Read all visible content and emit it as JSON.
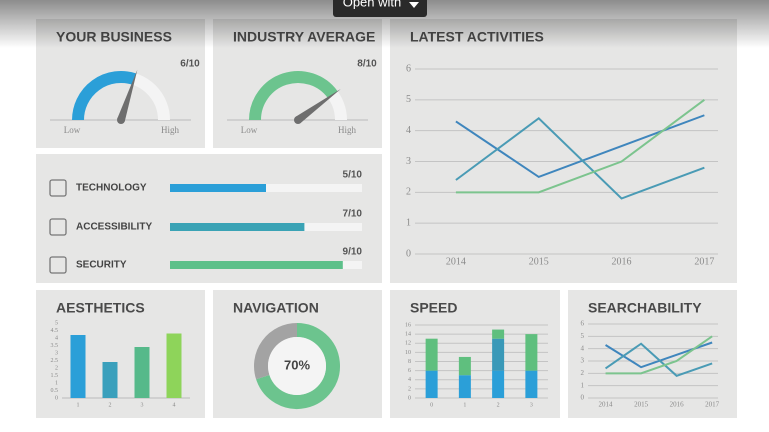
{
  "button": {
    "label": "Open with"
  },
  "chart_data": [
    {
      "type": "gauge",
      "title": "YOUR BUSINESS",
      "values": [
        6
      ],
      "value_labels": [
        "6/10"
      ],
      "ylim": [
        0,
        10
      ],
      "min_label": "Low",
      "max_label": "High",
      "color": "#2b9fd8"
    },
    {
      "type": "gauge",
      "title": "INDUSTRY AVERAGE",
      "values": [
        8
      ],
      "value_labels": [
        "8/10"
      ],
      "ylim": [
        0,
        10
      ],
      "min_label": "Low",
      "max_label": "High",
      "color": "#6cc48e"
    },
    {
      "type": "line",
      "title": "LATEST ACTIVITIES",
      "categories": [
        "2014",
        "2015",
        "2016",
        "2017"
      ],
      "series": [
        {
          "color": "#3f86bd",
          "values": [
            4.3,
            2.5,
            3.5,
            4.5
          ]
        },
        {
          "color": "#4a9bb5",
          "values": [
            2.4,
            4.4,
            1.8,
            2.8
          ]
        },
        {
          "color": "#7cc48e",
          "values": [
            2.0,
            2.0,
            3.0,
            5.0
          ]
        }
      ],
      "ylim": [
        0,
        6
      ],
      "yticks": [
        0,
        1,
        2,
        3,
        4,
        5,
        6
      ],
      "grid": true
    },
    {
      "type": "progress",
      "categories": [
        "TECHNOLOGY",
        "ACCESSIBILITY",
        "SECURITY"
      ],
      "values": [
        5,
        7,
        9
      ],
      "value_labels": [
        "5/10",
        "7/10",
        "9/10"
      ],
      "xlim": [
        0,
        10
      ],
      "colors": [
        "#2b9fd8",
        "#3aa3b5",
        "#5dc08a"
      ]
    },
    {
      "type": "bar",
      "title": "AESTHETICS",
      "categories": [
        "1",
        "2",
        "3",
        "4"
      ],
      "values": [
        4.2,
        2.4,
        3.4,
        4.3
      ],
      "colors": [
        "#2b9fd8",
        "#3aa0bc",
        "#56b98a",
        "#8ed45a"
      ],
      "ylim": [
        0,
        5
      ],
      "yticks": [
        0,
        0.5,
        1,
        1.5,
        2,
        2.5,
        3,
        3.5,
        4,
        4.5,
        5
      ]
    },
    {
      "type": "donut",
      "title": "NAVIGATION",
      "values": [
        70,
        30
      ],
      "value_labels": [
        "70%",
        null
      ],
      "colors": [
        "#6cc48e",
        "#a3a3a3"
      ]
    },
    {
      "type": "stacked-bar",
      "title": "SPEED",
      "categories": [
        "0",
        "1",
        "2",
        "3"
      ],
      "series": [
        {
          "color": "#2b9fd8",
          "values": [
            6,
            5,
            6,
            6
          ]
        },
        {
          "color": "#3a99b8",
          "values": [
            0,
            0,
            7,
            0
          ]
        },
        {
          "color": "#5fbf7e",
          "values": [
            7,
            4,
            2,
            8
          ]
        }
      ],
      "ylim": [
        0,
        16
      ],
      "yticks": [
        0,
        2,
        4,
        6,
        8,
        10,
        12,
        14,
        16
      ],
      "grid": true
    },
    {
      "type": "line",
      "title": "SEARCHABILITY",
      "categories": [
        "2014",
        "2015",
        "2016",
        "2017"
      ],
      "series": [
        {
          "color": "#3f86bd",
          "values": [
            4.3,
            2.5,
            3.5,
            4.5
          ]
        },
        {
          "color": "#4a9bb5",
          "values": [
            2.4,
            4.4,
            1.8,
            2.8
          ]
        },
        {
          "color": "#7cc48e",
          "values": [
            2.0,
            2.0,
            3.0,
            5.0
          ]
        }
      ],
      "ylim": [
        0,
        6
      ],
      "yticks": [
        0,
        1,
        2,
        3,
        4,
        5,
        6
      ],
      "grid": true
    }
  ]
}
